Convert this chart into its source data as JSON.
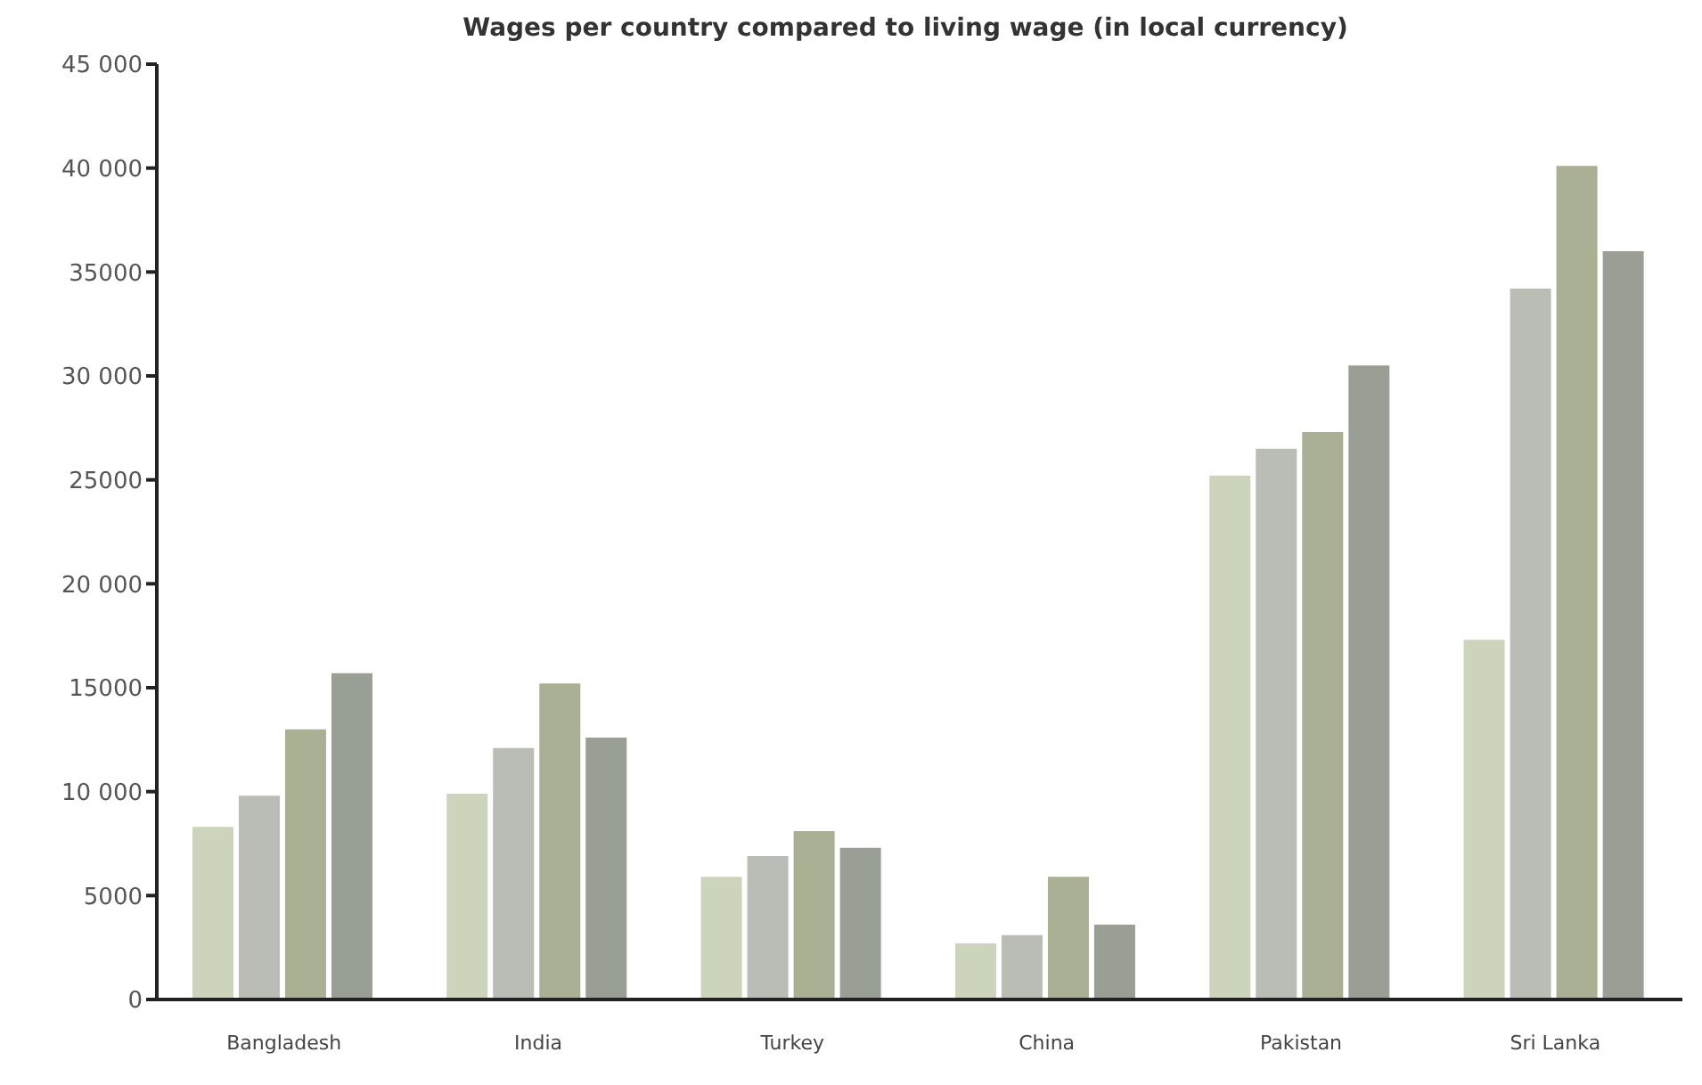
{
  "chart_data": {
    "type": "bar",
    "title": "Wages per country compared to living wage (in local currency)",
    "categories": [
      "Bangladesh",
      "India",
      "Turkey",
      "China",
      "Pakistan",
      "Sri Lanka"
    ],
    "series": [
      {
        "color": "#ccd4bb",
        "values": [
          8300,
          9900,
          5900,
          2700,
          25200,
          17300
        ]
      },
      {
        "color": "#babdb5",
        "values": [
          9800,
          12100,
          6900,
          3100,
          26500,
          34200
        ]
      },
      {
        "color": "#aab093",
        "values": [
          13000,
          15200,
          8100,
          5900,
          27300,
          40100
        ]
      },
      {
        "color": "#9a9f95",
        "values": [
          15700,
          12600,
          7300,
          3600,
          30500,
          36000
        ]
      }
    ],
    "ylim": [
      0,
      45000
    ],
    "yticks": [
      {
        "value": 0,
        "label": "0"
      },
      {
        "value": 5000,
        "label": "5000"
      },
      {
        "value": 10000,
        "label": "10 000"
      },
      {
        "value": 15000,
        "label": "15000"
      },
      {
        "value": 20000,
        "label": "20 000"
      },
      {
        "value": 25000,
        "label": "25000"
      },
      {
        "value": 30000,
        "label": "30 000"
      },
      {
        "value": 35000,
        "label": "35000"
      },
      {
        "value": 40000,
        "label": "40 000"
      },
      {
        "value": 45000,
        "label": "45 000"
      }
    ],
    "grid": false,
    "legend": false
  }
}
